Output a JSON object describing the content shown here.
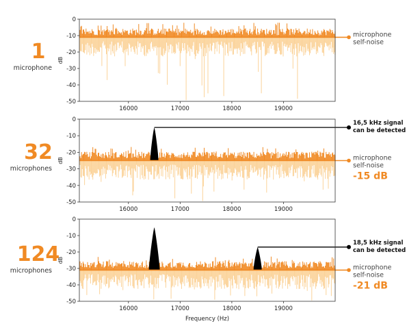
{
  "colors": {
    "accent": "#f08a24",
    "light": "#fbd39a",
    "signal": "#000000",
    "axis": "#333333",
    "label_gray": "#444444"
  },
  "xlabel": "Frequency (Hz)",
  "panel_ylabel": "dB",
  "chart_data": [
    {
      "type": "line",
      "count": "1",
      "count_label": "microphone",
      "x_ticks": [
        16000,
        17000,
        18000,
        19000
      ],
      "y_ticks": [
        0,
        -10,
        -20,
        -30,
        -40,
        -50
      ],
      "xlim": [
        15050,
        20000
      ],
      "ylim": [
        -50,
        0
      ],
      "noise_floor_db": -11,
      "noise_floor_label": [
        "microphone",
        "self-noise"
      ],
      "reduction_label": "",
      "signals": [],
      "series": [
        {
          "values_summary": "dense noise between approx -5 and -20 dB, occasional dips to -40 dB"
        }
      ]
    },
    {
      "type": "line",
      "count": "32",
      "count_label": "microphones",
      "x_ticks": [
        16000,
        17000,
        18000,
        19000
      ],
      "y_ticks": [
        0,
        -10,
        -20,
        -30,
        -40,
        -50
      ],
      "xlim": [
        15050,
        20000
      ],
      "ylim": [
        -50,
        0
      ],
      "noise_floor_db": -25,
      "noise_floor_label": [
        "microphone",
        "self-noise"
      ],
      "reduction_label": "-15 dB",
      "signals": [
        {
          "freq": 16500,
          "peak_db": -5,
          "label": [
            "16,5 kHz signal",
            "can be detected"
          ]
        }
      ]
    },
    {
      "type": "line",
      "count": "124",
      "count_label": "microphones",
      "x_ticks": [
        16000,
        17000,
        18000,
        19000
      ],
      "y_ticks": [
        0,
        -10,
        -20,
        -30,
        -40,
        -50
      ],
      "xlim": [
        15050,
        20000
      ],
      "ylim": [
        -50,
        0
      ],
      "noise_floor_db": -31,
      "noise_floor_label": [
        "microphone",
        "self-noise"
      ],
      "reduction_label": "-21 dB",
      "signals": [
        {
          "freq": 16500,
          "peak_db": -5,
          "label": []
        },
        {
          "freq": 18500,
          "peak_db": -17,
          "label": [
            "18,5 kHz signal",
            "can be detected"
          ]
        }
      ]
    }
  ]
}
